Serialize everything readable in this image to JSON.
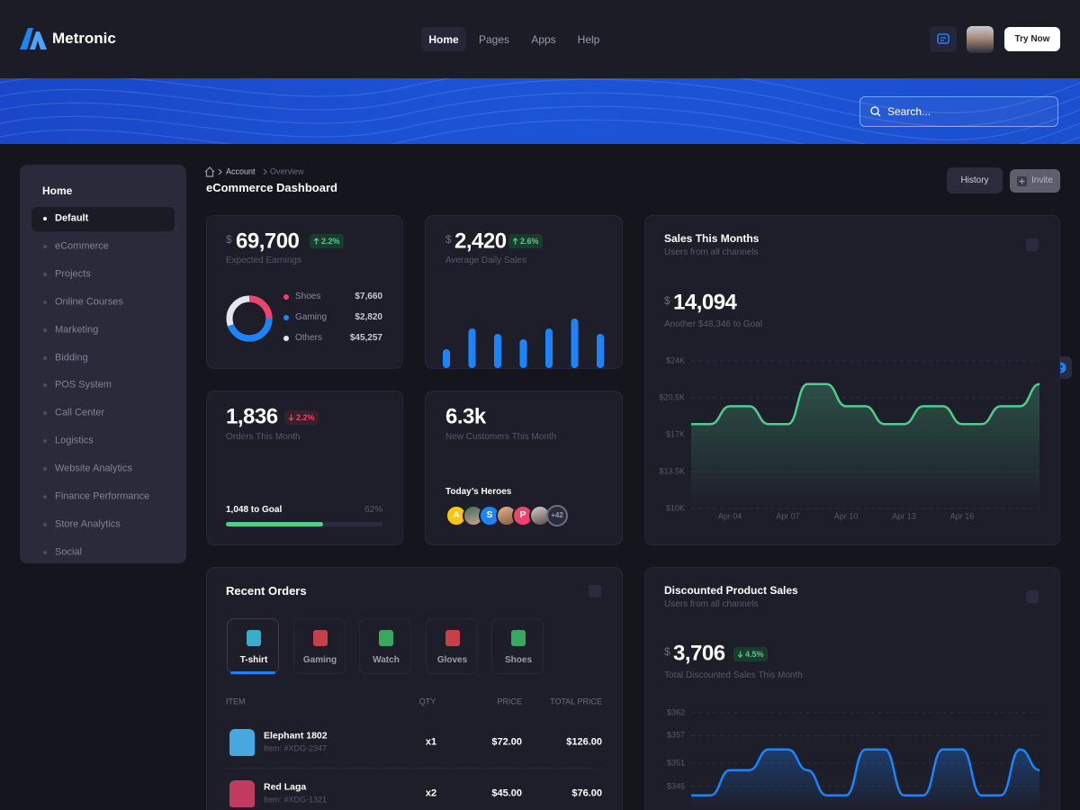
{
  "header": {
    "brand": "Metronic",
    "nav": [
      "Home",
      "Pages",
      "Apps",
      "Help"
    ],
    "button": "Try Now"
  },
  "banner": {
    "search_placeholder": "Search..."
  },
  "sidebar": {
    "title": "Home",
    "items": [
      "Default",
      "eCommerce",
      "Projects",
      "Online Courses",
      "Marketing",
      "Bidding",
      "POS System",
      "Call Center",
      "Logistics",
      "Website Analytics",
      "Finance Performance",
      "Store Analytics",
      "Social"
    ]
  },
  "breadcrumb": [
    "Account",
    "Overview"
  ],
  "page_title": "eCommerce Dashboard",
  "actions": [
    "History",
    "Invite"
  ],
  "cards": {
    "earnings": {
      "currency": "$",
      "value": "69,700",
      "change": "2.2%",
      "label": "Expected Earnings",
      "legend": [
        {
          "name": "Shoes",
          "amount": "$7,660",
          "color": "#f1416c"
        },
        {
          "name": "Gaming",
          "amount": "$2,820",
          "color": "#1b84ff"
        },
        {
          "name": "Others",
          "amount": "$45,257",
          "color": "#e4e6ef"
        }
      ]
    },
    "daily_sales": {
      "currency": "$",
      "value": "2,420",
      "change": "2.6%",
      "label": "Average Daily Sales",
      "bars": {
        "type": "bar",
        "values": [
          21,
          44,
          38,
          32,
          44,
          55,
          38
        ],
        "ylim": [
          0,
          60
        ],
        "color": "#1b84ff"
      }
    },
    "sales_month": {
      "title": "Sales This Months",
      "subtitle": "Users from all channels",
      "currency": "$",
      "value": "14,094",
      "note": "Another $48,346 to Goal",
      "chart": {
        "type": "area",
        "color": "#50cd89",
        "categories": [
          null,
          null,
          "Apr 04",
          null,
          null,
          "Apr 07",
          null,
          null,
          "Apr 10",
          null,
          null,
          "Apr 13",
          null,
          null,
          "Apr 16",
          null,
          null,
          null,
          null
        ],
        "values": [
          18000,
          18000,
          19700,
          19700,
          18000,
          18000,
          21800,
          21800,
          19700,
          19700,
          18000,
          18000,
          19700,
          19700,
          18000,
          18000,
          19700,
          19700,
          21800
        ],
        "ylim": [
          10000,
          24000
        ],
        "yticks": [
          {
            "value": 10000,
            "label": "$10K"
          },
          {
            "value": 13500,
            "label": "$13.5K"
          },
          {
            "value": 17000,
            "label": "$17K"
          },
          {
            "value": 20500,
            "label": "$20.5K"
          },
          {
            "value": 24000,
            "label": "$24K"
          }
        ],
        "grid": true
      }
    },
    "orders": {
      "value": "1,836",
      "change": "2.2%",
      "label": "Orders This Month",
      "goal": "1,048 to Goal",
      "progress": {
        "value": 62,
        "label": "62%"
      }
    },
    "customers": {
      "value": "6.3k",
      "label": "New Customers This Month",
      "heroes_title": "Today’s Heroes",
      "heroes": [
        "A",
        "S",
        "P",
        "+42"
      ]
    },
    "recent_orders": {
      "title": "Recent Orders",
      "tabs": [
        "T-shirt",
        "Gaming",
        "Watch",
        "Gloves",
        "Shoes"
      ],
      "columns": [
        "ITEM",
        "QTY",
        "PRICE",
        "TOTAL PRICE"
      ],
      "rows": [
        [
          "Elephant 1802",
          "Item: #XDG-2347",
          "x1",
          "$72.00",
          "$126.00"
        ],
        [
          "Red Laga",
          "Item: #XDG-1321",
          "x2",
          "$45.00",
          "$76.00"
        ]
      ]
    },
    "discounted": {
      "title": "Discounted Product Sales",
      "subtitle": "Users from all channels",
      "currency": "$",
      "value": "3,706",
      "change": "4.5%",
      "label": "Total Discounted Sales This Month",
      "chart": {
        "type": "area",
        "color": "#1b84ff",
        "values": [
          344,
          344,
          349.5,
          349.5,
          354,
          354,
          349.5,
          344,
          344,
          354,
          354,
          344,
          344,
          354,
          354,
          344,
          344,
          354,
          349.5
        ],
        "ylim": [
          341,
          362
        ],
        "yticks": [
          {
            "value": 346,
            "label": "$346"
          },
          {
            "value": 351,
            "label": "$351"
          },
          {
            "value": 357,
            "label": "$357"
          },
          {
            "value": 362,
            "label": "$362"
          }
        ],
        "grid": true
      }
    }
  }
}
